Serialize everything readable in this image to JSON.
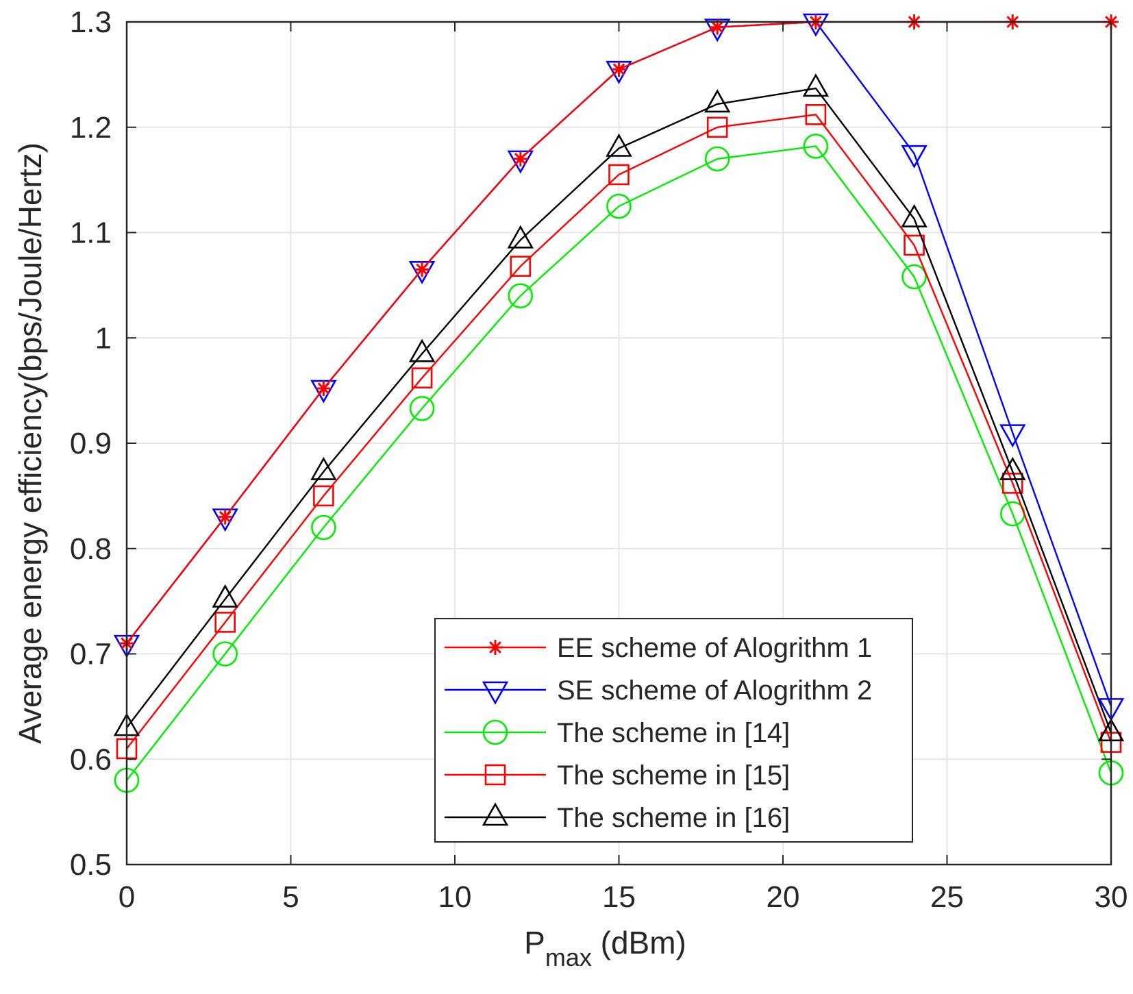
{
  "chart_data": {
    "type": "line",
    "title": "",
    "xlabel": "P",
    "xlabel_subscript": "max",
    "xlabel_unit": " (dBm)",
    "ylabel": "Average energy efficiency(bps/Joule/Hertz)",
    "xlim": [
      0,
      30
    ],
    "ylim": [
      0.5,
      1.3
    ],
    "xticks": [
      0,
      5,
      10,
      15,
      20,
      25,
      30
    ],
    "yticks": [
      0.5,
      0.6,
      0.7,
      0.8,
      0.9,
      1,
      1.1,
      1.2,
      1.3
    ],
    "xtick_labels": [
      "0",
      "5",
      "10",
      "15",
      "20",
      "25",
      "30"
    ],
    "ytick_labels": [
      "0.5",
      "0.6",
      "0.7",
      "0.8",
      "0.9",
      "1",
      "1.1",
      "1.2",
      "1.3"
    ],
    "grid": true,
    "legend_position": "bottom-center",
    "x": [
      0,
      3,
      6,
      9,
      12,
      15,
      18,
      21,
      24,
      27,
      30
    ],
    "series": [
      {
        "name": "EE scheme of Alogrithm 1",
        "color": "#ff0000",
        "marker": "asterisk",
        "values": [
          0.71,
          0.83,
          0.952,
          1.065,
          1.17,
          1.255,
          1.295,
          1.3,
          1.3,
          1.3,
          1.3
        ]
      },
      {
        "name": "SE scheme of Alogrithm 2",
        "color": "#0000ff",
        "marker": "triangle-down",
        "values": [
          0.71,
          0.83,
          0.952,
          1.065,
          1.17,
          1.255,
          1.295,
          1.3,
          1.175,
          0.91,
          0.65
        ]
      },
      {
        "name": "The scheme in [14]",
        "color": "#00ee00",
        "marker": "circle",
        "values": [
          0.58,
          0.7,
          0.82,
          0.933,
          1.04,
          1.125,
          1.17,
          1.182,
          1.058,
          0.833,
          0.587
        ]
      },
      {
        "name": "The scheme in [15]",
        "color": "#ff0000",
        "marker": "square",
        "values": [
          0.61,
          0.73,
          0.85,
          0.962,
          1.068,
          1.155,
          1.2,
          1.212,
          1.088,
          0.862,
          0.616
        ]
      },
      {
        "name": "The scheme in [16]",
        "color": "#000000",
        "marker": "triangle-up",
        "values": [
          0.63,
          0.752,
          0.873,
          0.985,
          1.093,
          1.18,
          1.222,
          1.237,
          1.113,
          0.873,
          0.625
        ]
      }
    ]
  }
}
